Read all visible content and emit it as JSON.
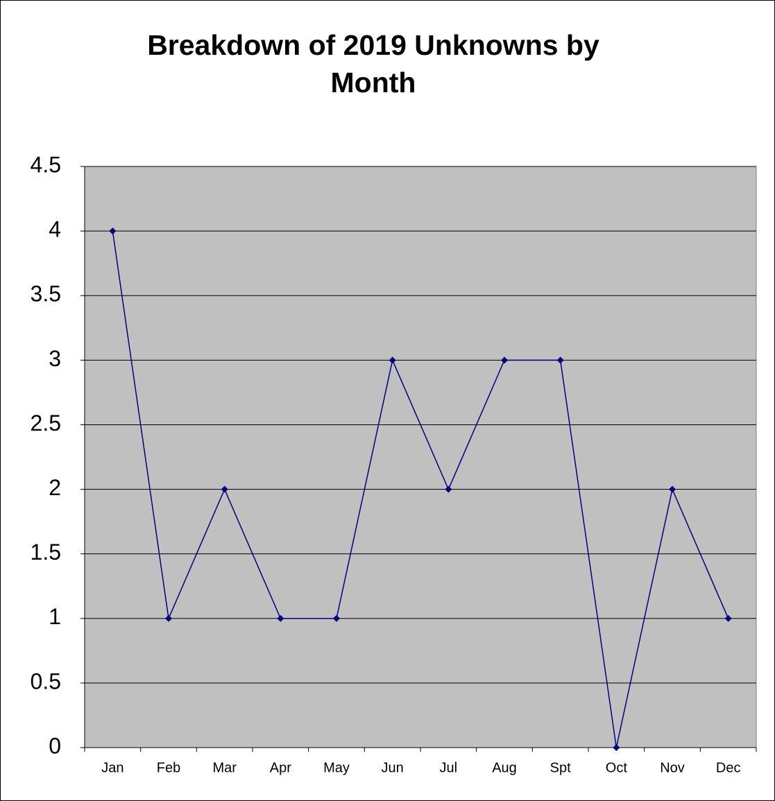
{
  "chart_data": {
    "type": "line",
    "title": "Breakdown of 2019 Unknowns by Month",
    "categories": [
      "Jan",
      "Feb",
      "Mar",
      "Apr",
      "May",
      "Jun",
      "Jul",
      "Aug",
      "Spt",
      "Oct",
      "Nov",
      "Dec"
    ],
    "values": [
      4,
      1,
      2,
      1,
      1,
      3,
      2,
      3,
      3,
      0,
      2,
      1
    ],
    "color": "#000080",
    "background": "#c0c0c0",
    "ylim": [
      0,
      4.5
    ],
    "yticks": [
      0,
      0.5,
      1,
      1.5,
      2,
      2.5,
      3,
      3.5,
      4,
      4.5
    ],
    "grid": true
  }
}
